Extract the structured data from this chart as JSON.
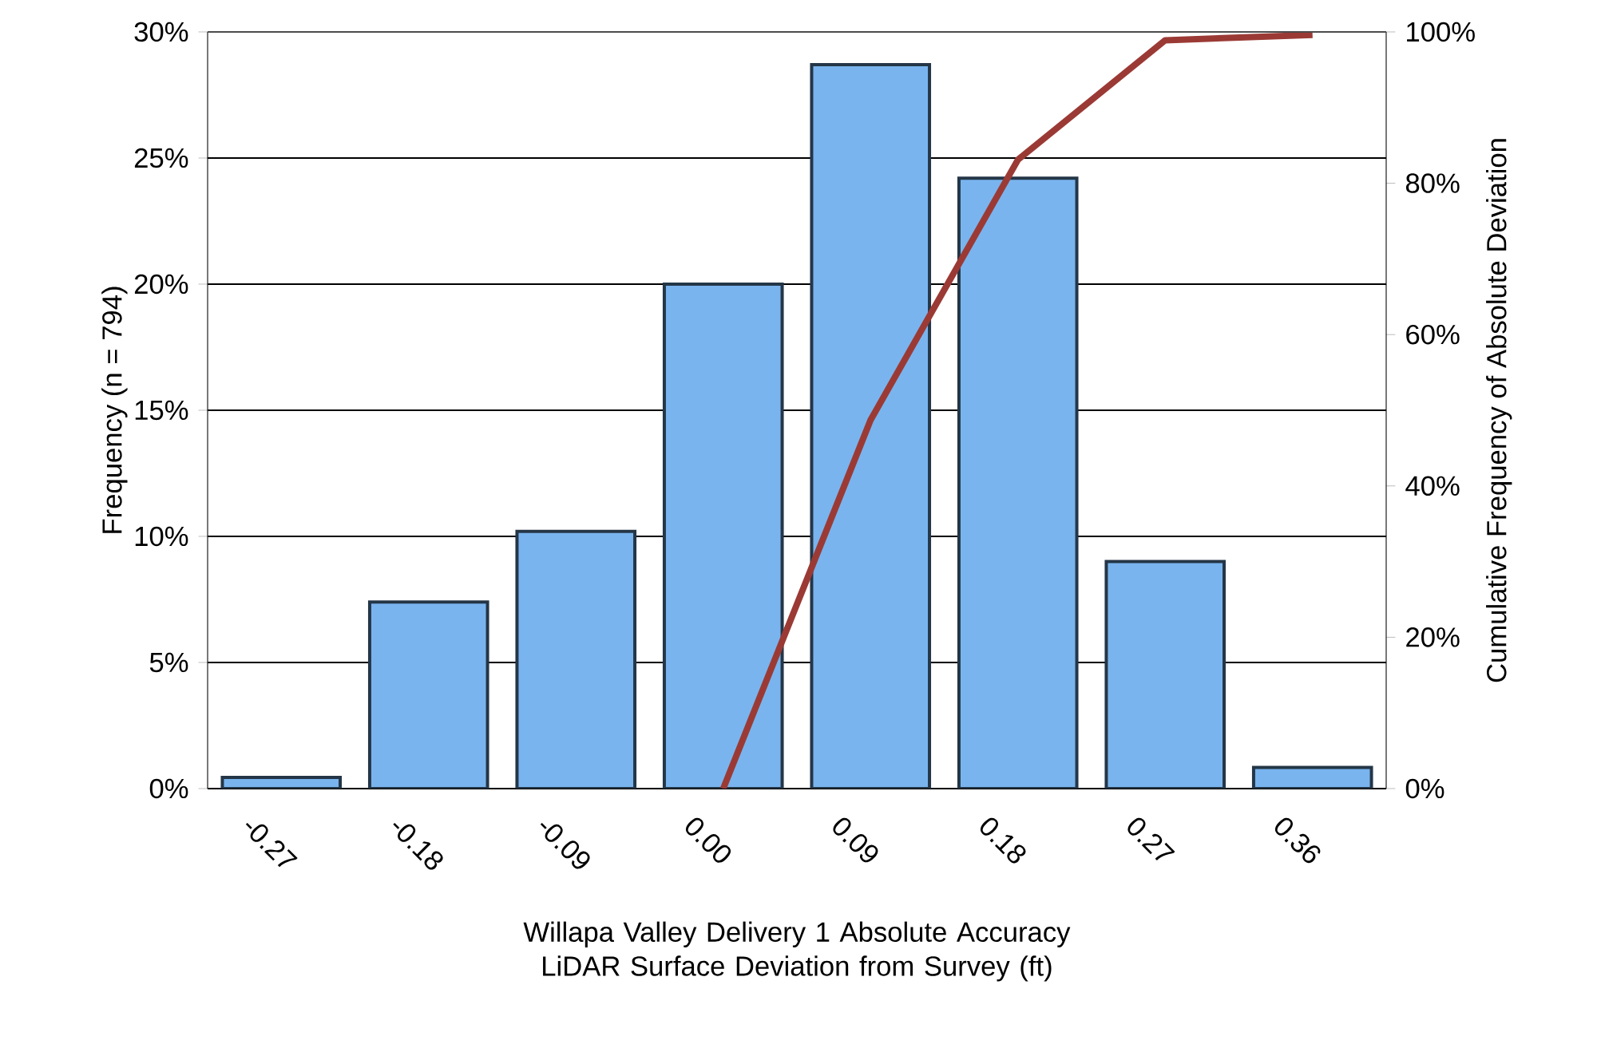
{
  "chart_data": {
    "type": "bar",
    "categories": [
      "-0.27",
      "-0.18",
      "-0.09",
      "0.00",
      "0.09",
      "0.18",
      "0.27",
      "0.36"
    ],
    "series": [
      {
        "color": "#79b4ee",
        "values": [
          0.44,
          7.4,
          10.2,
          20.0,
          28.7,
          24.2,
          9.0,
          0.84
        ]
      },
      {
        "type": "line",
        "axis": "y2",
        "color": "#9b3a35",
        "values": [
          null,
          null,
          null,
          0,
          48.7,
          83.1,
          98.9,
          99.6
        ]
      }
    ],
    "xlabel": "Willapa Valley Delivery 1 Absolute Accuracy LiDAR Surface Deviation from Survey (ft)",
    "ylabel": "Frequency (n = 794)",
    "y2label": "Cumulative Frequency of Absolute Deviation",
    "ylim": [
      0,
      30
    ],
    "yticks": [
      {
        "value": 0,
        "label": "0%"
      },
      {
        "value": 5,
        "label": "5%"
      },
      {
        "value": 10,
        "label": "10%"
      },
      {
        "value": 15,
        "label": "15%"
      },
      {
        "value": 20,
        "label": "20%"
      },
      {
        "value": 25,
        "label": "25%"
      },
      {
        "value": 30,
        "label": "30%"
      }
    ],
    "y2lim": [
      0,
      100
    ],
    "y2ticks": [
      {
        "value": 0,
        "label": "0%"
      },
      {
        "value": 20,
        "label": "20%"
      },
      {
        "value": 40,
        "label": "40%"
      },
      {
        "value": 60,
        "label": "60%"
      },
      {
        "value": 80,
        "label": "80%"
      },
      {
        "value": 100,
        "label": "100%"
      }
    ],
    "grid": "y",
    "marker": "none"
  }
}
